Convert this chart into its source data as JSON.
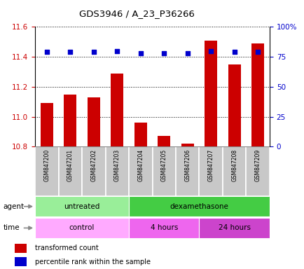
{
  "title": "GDS3946 / A_23_P36266",
  "samples": [
    "GSM847200",
    "GSM847201",
    "GSM847202",
    "GSM847203",
    "GSM847204",
    "GSM847205",
    "GSM847206",
    "GSM847207",
    "GSM847208",
    "GSM847209"
  ],
  "transformed_count": [
    11.09,
    11.15,
    11.13,
    11.29,
    10.96,
    10.87,
    10.82,
    11.51,
    11.35,
    11.49
  ],
  "percentile_rank": [
    79,
    79,
    79,
    80,
    78,
    78,
    78,
    80,
    79,
    79
  ],
  "ylim_left": [
    10.8,
    11.6
  ],
  "ylim_right": [
    0,
    100
  ],
  "yticks_left": [
    10.8,
    11.0,
    11.2,
    11.4,
    11.6
  ],
  "yticks_right": [
    0,
    25,
    50,
    75,
    100
  ],
  "ytick_labels_right": [
    "0",
    "25",
    "50",
    "75",
    "100%"
  ],
  "bar_color": "#cc0000",
  "dot_color": "#0000cc",
  "bar_bottom": 10.8,
  "agent_groups": [
    {
      "label": "untreated",
      "start": 0,
      "end": 4,
      "color": "#99ee99"
    },
    {
      "label": "dexamethasone",
      "start": 4,
      "end": 10,
      "color": "#44cc44"
    }
  ],
  "time_groups": [
    {
      "label": "control",
      "start": 0,
      "end": 4,
      "color": "#ffaaff"
    },
    {
      "label": "4 hours",
      "start": 4,
      "end": 7,
      "color": "#ee66ee"
    },
    {
      "label": "24 hours",
      "start": 7,
      "end": 10,
      "color": "#cc44cc"
    }
  ],
  "legend_bar_label": "transformed count",
  "legend_dot_label": "percentile rank within the sample",
  "tick_label_color_left": "#cc0000",
  "tick_label_color_right": "#0000cc",
  "background_tick_area": "#c8c8c8",
  "border_color": "#888888"
}
